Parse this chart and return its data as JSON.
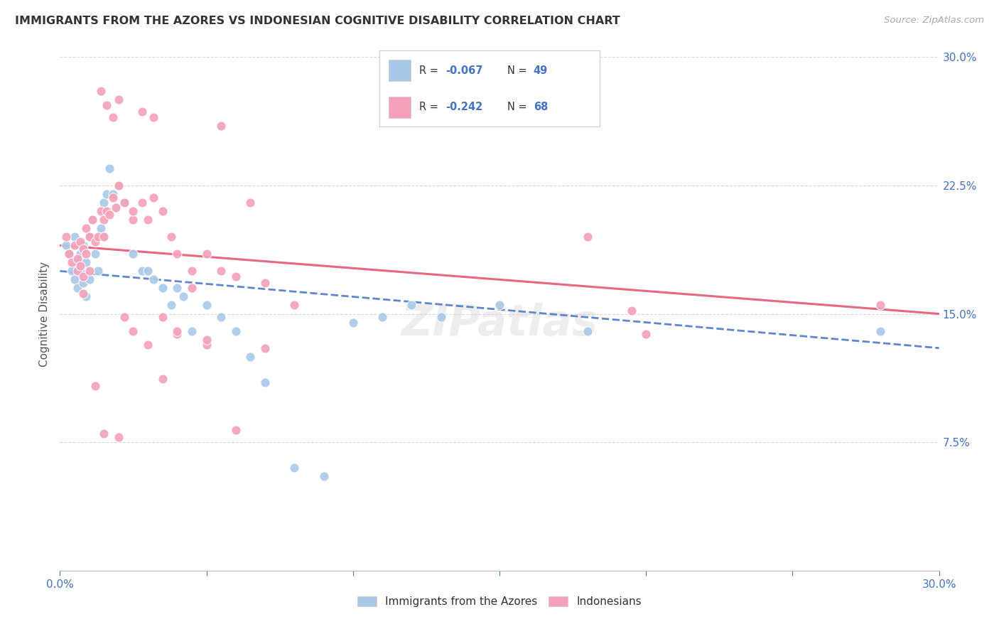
{
  "title": "IMMIGRANTS FROM THE AZORES VS INDONESIAN COGNITIVE DISABILITY CORRELATION CHART",
  "source": "Source: ZipAtlas.com",
  "ylabel": "Cognitive Disability",
  "xlim": [
    0.0,
    0.3
  ],
  "ylim": [
    0.0,
    0.3
  ],
  "color_azores": "#a8c8e8",
  "color_indonesian": "#f4a0b8",
  "color_blue": "#4472c4",
  "color_pink": "#e8607a",
  "background_color": "#ffffff",
  "grid_color": "#d8d8d8",
  "azores_x": [
    0.002,
    0.003,
    0.004,
    0.005,
    0.005,
    0.006,
    0.006,
    0.007,
    0.007,
    0.008,
    0.008,
    0.009,
    0.009,
    0.01,
    0.01,
    0.011,
    0.012,
    0.013,
    0.014,
    0.015,
    0.015,
    0.016,
    0.017,
    0.018,
    0.02,
    0.022,
    0.025,
    0.028,
    0.03,
    0.032,
    0.035,
    0.038,
    0.04,
    0.042,
    0.045,
    0.05,
    0.055,
    0.06,
    0.065,
    0.07,
    0.08,
    0.09,
    0.1,
    0.11,
    0.12,
    0.13,
    0.15,
    0.18,
    0.28
  ],
  "azores_y": [
    0.19,
    0.185,
    0.175,
    0.195,
    0.17,
    0.18,
    0.165,
    0.185,
    0.175,
    0.19,
    0.168,
    0.18,
    0.16,
    0.195,
    0.17,
    0.205,
    0.185,
    0.175,
    0.2,
    0.195,
    0.215,
    0.22,
    0.235,
    0.22,
    0.225,
    0.215,
    0.185,
    0.175,
    0.175,
    0.17,
    0.165,
    0.155,
    0.165,
    0.16,
    0.14,
    0.155,
    0.148,
    0.14,
    0.125,
    0.11,
    0.06,
    0.055,
    0.145,
    0.148,
    0.155,
    0.148,
    0.155,
    0.14,
    0.14
  ],
  "indonesian_x": [
    0.002,
    0.003,
    0.004,
    0.005,
    0.006,
    0.006,
    0.007,
    0.007,
    0.008,
    0.008,
    0.009,
    0.009,
    0.01,
    0.01,
    0.011,
    0.012,
    0.013,
    0.014,
    0.015,
    0.015,
    0.016,
    0.017,
    0.018,
    0.019,
    0.02,
    0.022,
    0.025,
    0.028,
    0.03,
    0.032,
    0.035,
    0.038,
    0.04,
    0.045,
    0.05,
    0.055,
    0.06,
    0.065,
    0.07,
    0.08,
    0.022,
    0.025,
    0.03,
    0.04,
    0.05,
    0.028,
    0.032,
    0.055,
    0.014,
    0.016,
    0.018,
    0.02,
    0.025,
    0.035,
    0.04,
    0.05,
    0.18,
    0.195,
    0.2,
    0.28,
    0.008,
    0.012,
    0.015,
    0.02,
    0.035,
    0.045,
    0.06,
    0.07
  ],
  "indonesian_y": [
    0.195,
    0.185,
    0.18,
    0.19,
    0.182,
    0.175,
    0.192,
    0.178,
    0.188,
    0.172,
    0.2,
    0.185,
    0.195,
    0.175,
    0.205,
    0.192,
    0.195,
    0.21,
    0.205,
    0.195,
    0.21,
    0.208,
    0.218,
    0.212,
    0.225,
    0.215,
    0.205,
    0.215,
    0.205,
    0.218,
    0.21,
    0.195,
    0.185,
    0.175,
    0.185,
    0.175,
    0.172,
    0.215,
    0.168,
    0.155,
    0.148,
    0.14,
    0.132,
    0.138,
    0.132,
    0.268,
    0.265,
    0.26,
    0.28,
    0.272,
    0.265,
    0.275,
    0.21,
    0.148,
    0.14,
    0.135,
    0.195,
    0.152,
    0.138,
    0.155,
    0.162,
    0.108,
    0.08,
    0.078,
    0.112,
    0.165,
    0.082,
    0.13
  ]
}
